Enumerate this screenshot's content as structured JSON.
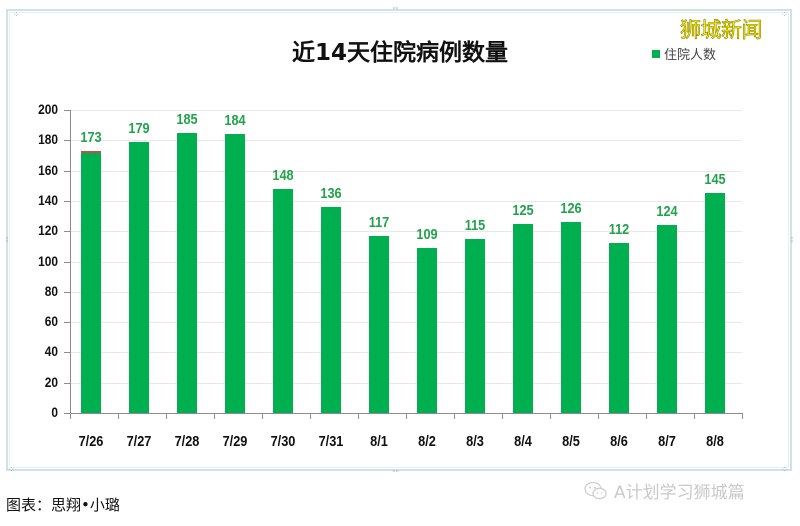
{
  "chart_data": {
    "type": "bar",
    "title": "近14天住院病例数量",
    "categories": [
      "7/26",
      "7/27",
      "7/28",
      "7/29",
      "7/30",
      "7/31",
      "8/1",
      "8/2",
      "8/3",
      "8/4",
      "8/5",
      "8/6",
      "8/7",
      "8/8"
    ],
    "series": [
      {
        "name": "住院人数",
        "color": "#00b050",
        "values": [
          173,
          179,
          185,
          184,
          148,
          136,
          117,
          109,
          115,
          125,
          126,
          112,
          124,
          145
        ]
      }
    ],
    "xlabel": "",
    "ylabel": "",
    "ylim": [
      0,
      200
    ],
    "yticks": [
      0,
      20,
      40,
      60,
      80,
      100,
      120,
      140,
      160,
      180,
      200
    ],
    "grid": true,
    "legend_position": "top-right",
    "data_labels": true,
    "data_label_color": "#21a24c"
  },
  "watermark": "狮城新闻",
  "credit": "图表：思翔•小璐",
  "wechat_source": "A计划学习狮城篇",
  "colors": {
    "bar": "#00b050",
    "label": "#21a24c",
    "watermark": "#ffff00",
    "frame": "#cfe3e6"
  }
}
